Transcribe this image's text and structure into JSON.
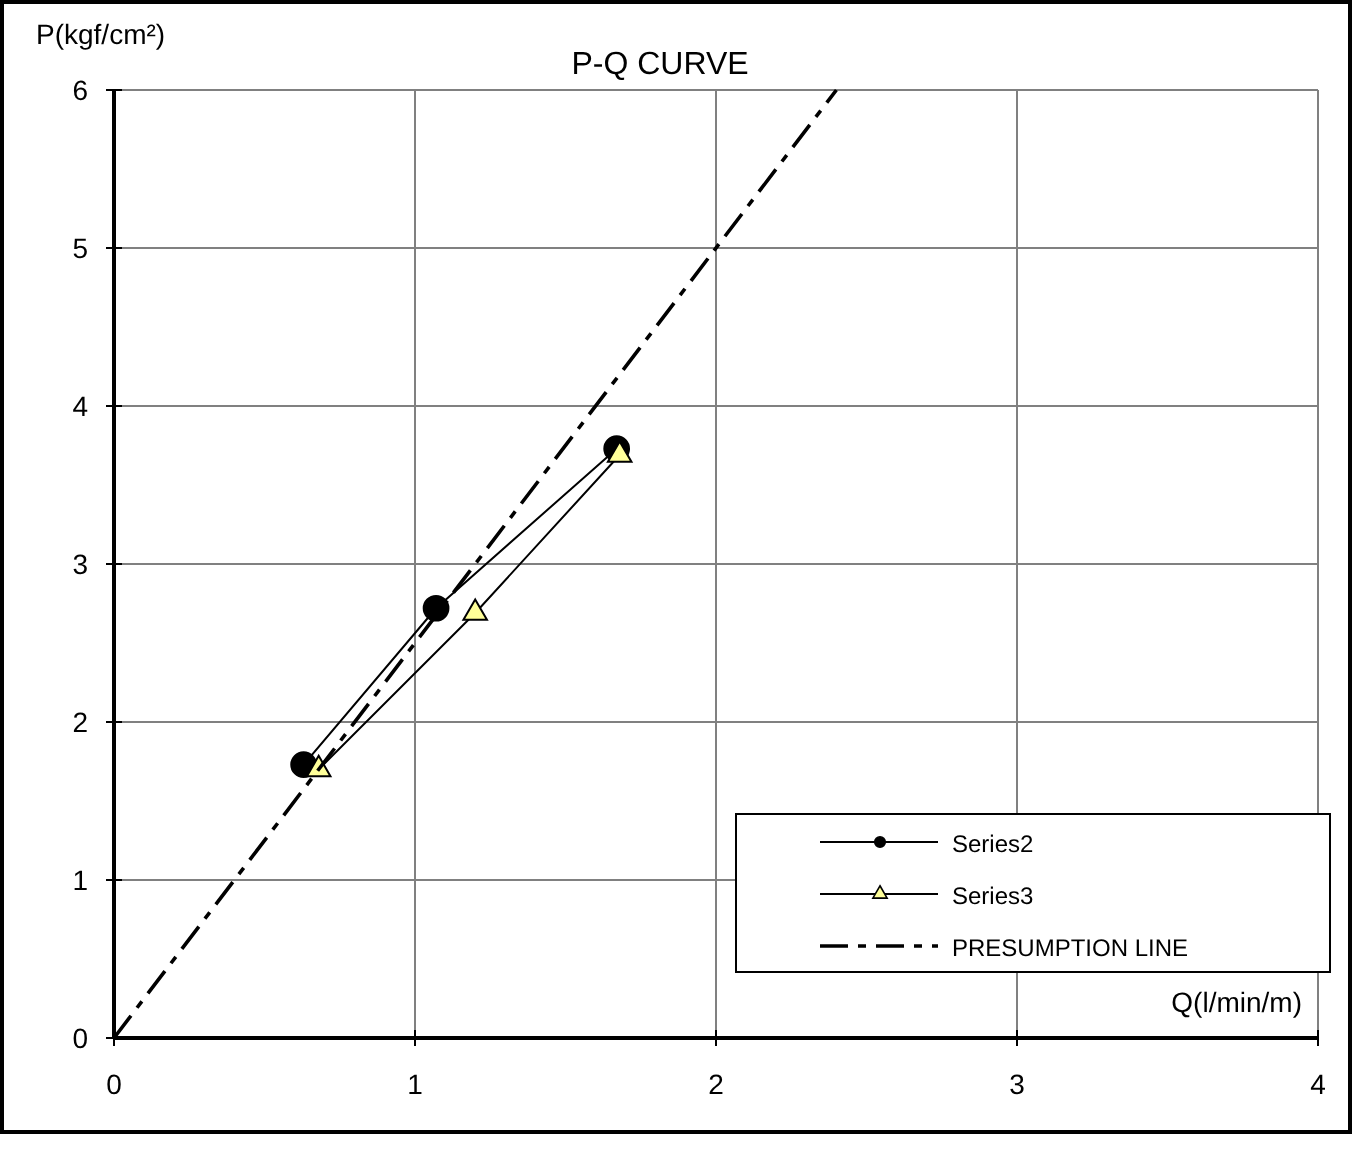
{
  "chart_data": {
    "type": "line",
    "title": "P-Q CURVE",
    "xlabel": "Q(l/min/m)",
    "ylabel": "P(kgf/cm²)",
    "xlim": [
      0,
      4
    ],
    "ylim": [
      0,
      6
    ],
    "xticks": [
      0,
      1,
      2,
      3,
      4
    ],
    "yticks": [
      0,
      1,
      2,
      3,
      4,
      5,
      6
    ],
    "grid": true,
    "legend": "bottom right",
    "series": [
      {
        "name": "Series2",
        "color": "#000000",
        "marker": "circle",
        "line_style": "solid",
        "x": [
          0.63,
          1.07,
          1.67
        ],
        "values": [
          1.73,
          2.72,
          3.73
        ]
      },
      {
        "name": "Series3",
        "color": "#ffff99",
        "marker": "triangle",
        "line_style": "solid",
        "x": [
          0.68,
          1.2,
          1.68
        ],
        "values": [
          1.7,
          2.69,
          3.69
        ]
      },
      {
        "name": "PRESUMPTION LINE",
        "color": "#000000",
        "line_style": "dashed",
        "x": [
          0,
          2.4
        ],
        "values": [
          0,
          6
        ]
      }
    ]
  }
}
